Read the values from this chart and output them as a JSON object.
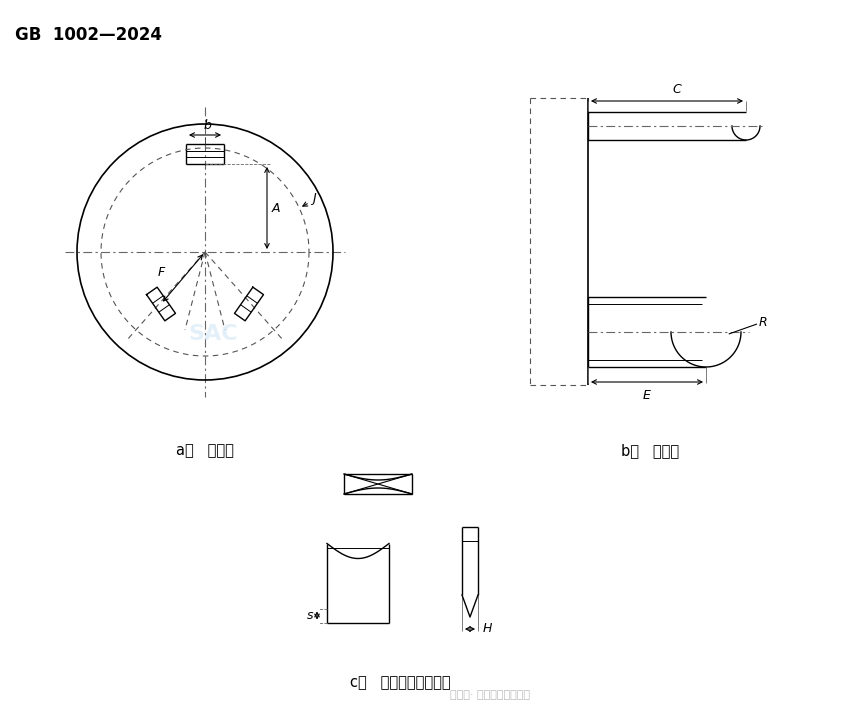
{
  "title": "GB  1002—2024",
  "bg_color": "#ffffff",
  "line_color": "#000000",
  "label_a": "a）   正视图",
  "label_b": "b）   侧视图",
  "label_c": "c）   插销端部形状示例"
}
